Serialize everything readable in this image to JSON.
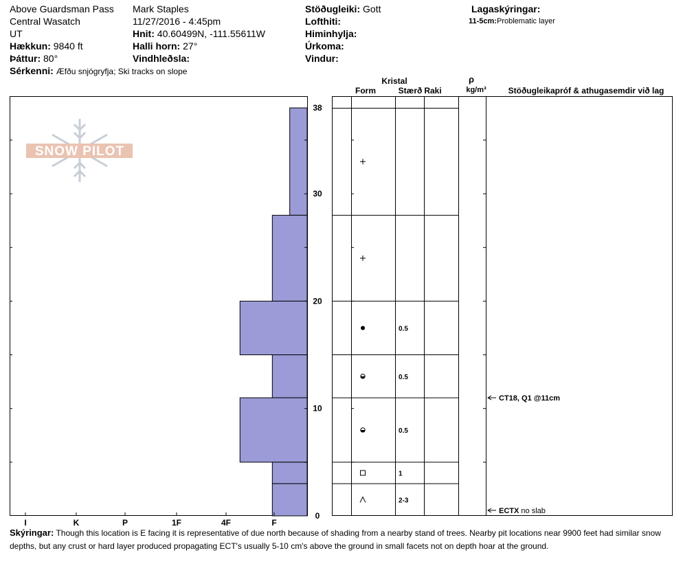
{
  "header": {
    "location": "Above Guardsman Pass",
    "region": "Central Wasatch",
    "state": "UT",
    "elevation_label": "Hækkun:",
    "elevation_value": "9840 ft",
    "aspect_label": "Þáttur:",
    "aspect_value": "80°",
    "features_label": "Sérkenni:",
    "features_value": "Æfðu snjógryfja;  Ski tracks on slope",
    "observer": "Mark Staples",
    "datetime": "11/27/2016 - 4:45pm",
    "coords_label": "Hnit:",
    "coords_value": "40.60499N, -111.55611W",
    "slope_label": "Halli horn:",
    "slope_value": "27°",
    "wind_loading_label": "Vindhleðsla:",
    "wind_loading_value": "",
    "stability_label": "Stöðugleiki:",
    "stability_value": "Gott",
    "air_temp_label": "Lofthiti:",
    "air_temp_value": "",
    "sky_label": "Himinhylja:",
    "sky_value": "",
    "precip_label": "Úrkoma:",
    "precip_value": "",
    "wind_label": "Vindur:",
    "wind_value": "",
    "layer_notes_title": "Lagaskýringar:",
    "layer_note_range": "11-5cm:",
    "layer_note_text": "Problematic layer"
  },
  "column_headers": {
    "crystal": "Kristal",
    "form": "Form",
    "size": "Stærð",
    "moisture": "Raki",
    "rho": "ρ",
    "density_unit": "kg/m³",
    "tests": "Stöðugleikapróf & athugasemdir við lag"
  },
  "chart_data": {
    "type": "bar",
    "orientation": "horizontal",
    "y_unit": "cm",
    "ylim": [
      0,
      39
    ],
    "y_ticks": [
      0,
      10,
      20,
      30,
      38
    ],
    "hardness_scale": [
      "I",
      "K",
      "P",
      "1F",
      "4F",
      "F"
    ],
    "hardness_axis_labels": [
      "I",
      "K",
      "P",
      "1F",
      "4F",
      "F"
    ],
    "layers": [
      {
        "top": 38,
        "bottom": 28,
        "hardness": 0.35
      },
      {
        "top": 28,
        "bottom": 20,
        "hardness": 0.7
      },
      {
        "top": 20,
        "bottom": 15,
        "hardness": 1.35
      },
      {
        "top": 15,
        "bottom": 11,
        "hardness": 0.7
      },
      {
        "top": 11,
        "bottom": 5,
        "hardness": 1.35
      },
      {
        "top": 5,
        "bottom": 3,
        "hardness": 0.7
      },
      {
        "top": 3,
        "bottom": 0,
        "hardness": 0.7
      }
    ],
    "bar_color": "#9b9bd8",
    "grain_layers": [
      {
        "top": 38,
        "bottom": 28,
        "form": "+",
        "size": ""
      },
      {
        "top": 28,
        "bottom": 20,
        "form": "+",
        "size": ""
      },
      {
        "top": 20,
        "bottom": 15,
        "form": "dot",
        "size": "0.5"
      },
      {
        "top": 15,
        "bottom": 11,
        "form": "rounded-facet",
        "size": "0.5"
      },
      {
        "top": 11,
        "bottom": 5,
        "form": "rounded-facet",
        "size": "0.5"
      },
      {
        "top": 5,
        "bottom": 3,
        "form": "square",
        "size": "1"
      },
      {
        "top": 3,
        "bottom": 0,
        "form": "hoar",
        "size": "2-3"
      }
    ],
    "tests": [
      {
        "depth": 11,
        "bold": "CT18, Q1 @11cm",
        "text": ""
      },
      {
        "depth": 0,
        "bold": "ECTX",
        "text": "no slab"
      }
    ]
  },
  "notes": {
    "label": "Skýringar:",
    "text": "Though this location is E facing it is representative of due north because of shading from a nearby stand of trees. Nearby pit locations near 9900 feet had similar snow depths, but any crust or hard layer produced propagating ECT's usually 5-10 cm's above the ground in small facets not on depth hoar at the ground."
  },
  "watermark": {
    "text": "SNOW PILOT",
    "color": "#e8b9a5"
  }
}
